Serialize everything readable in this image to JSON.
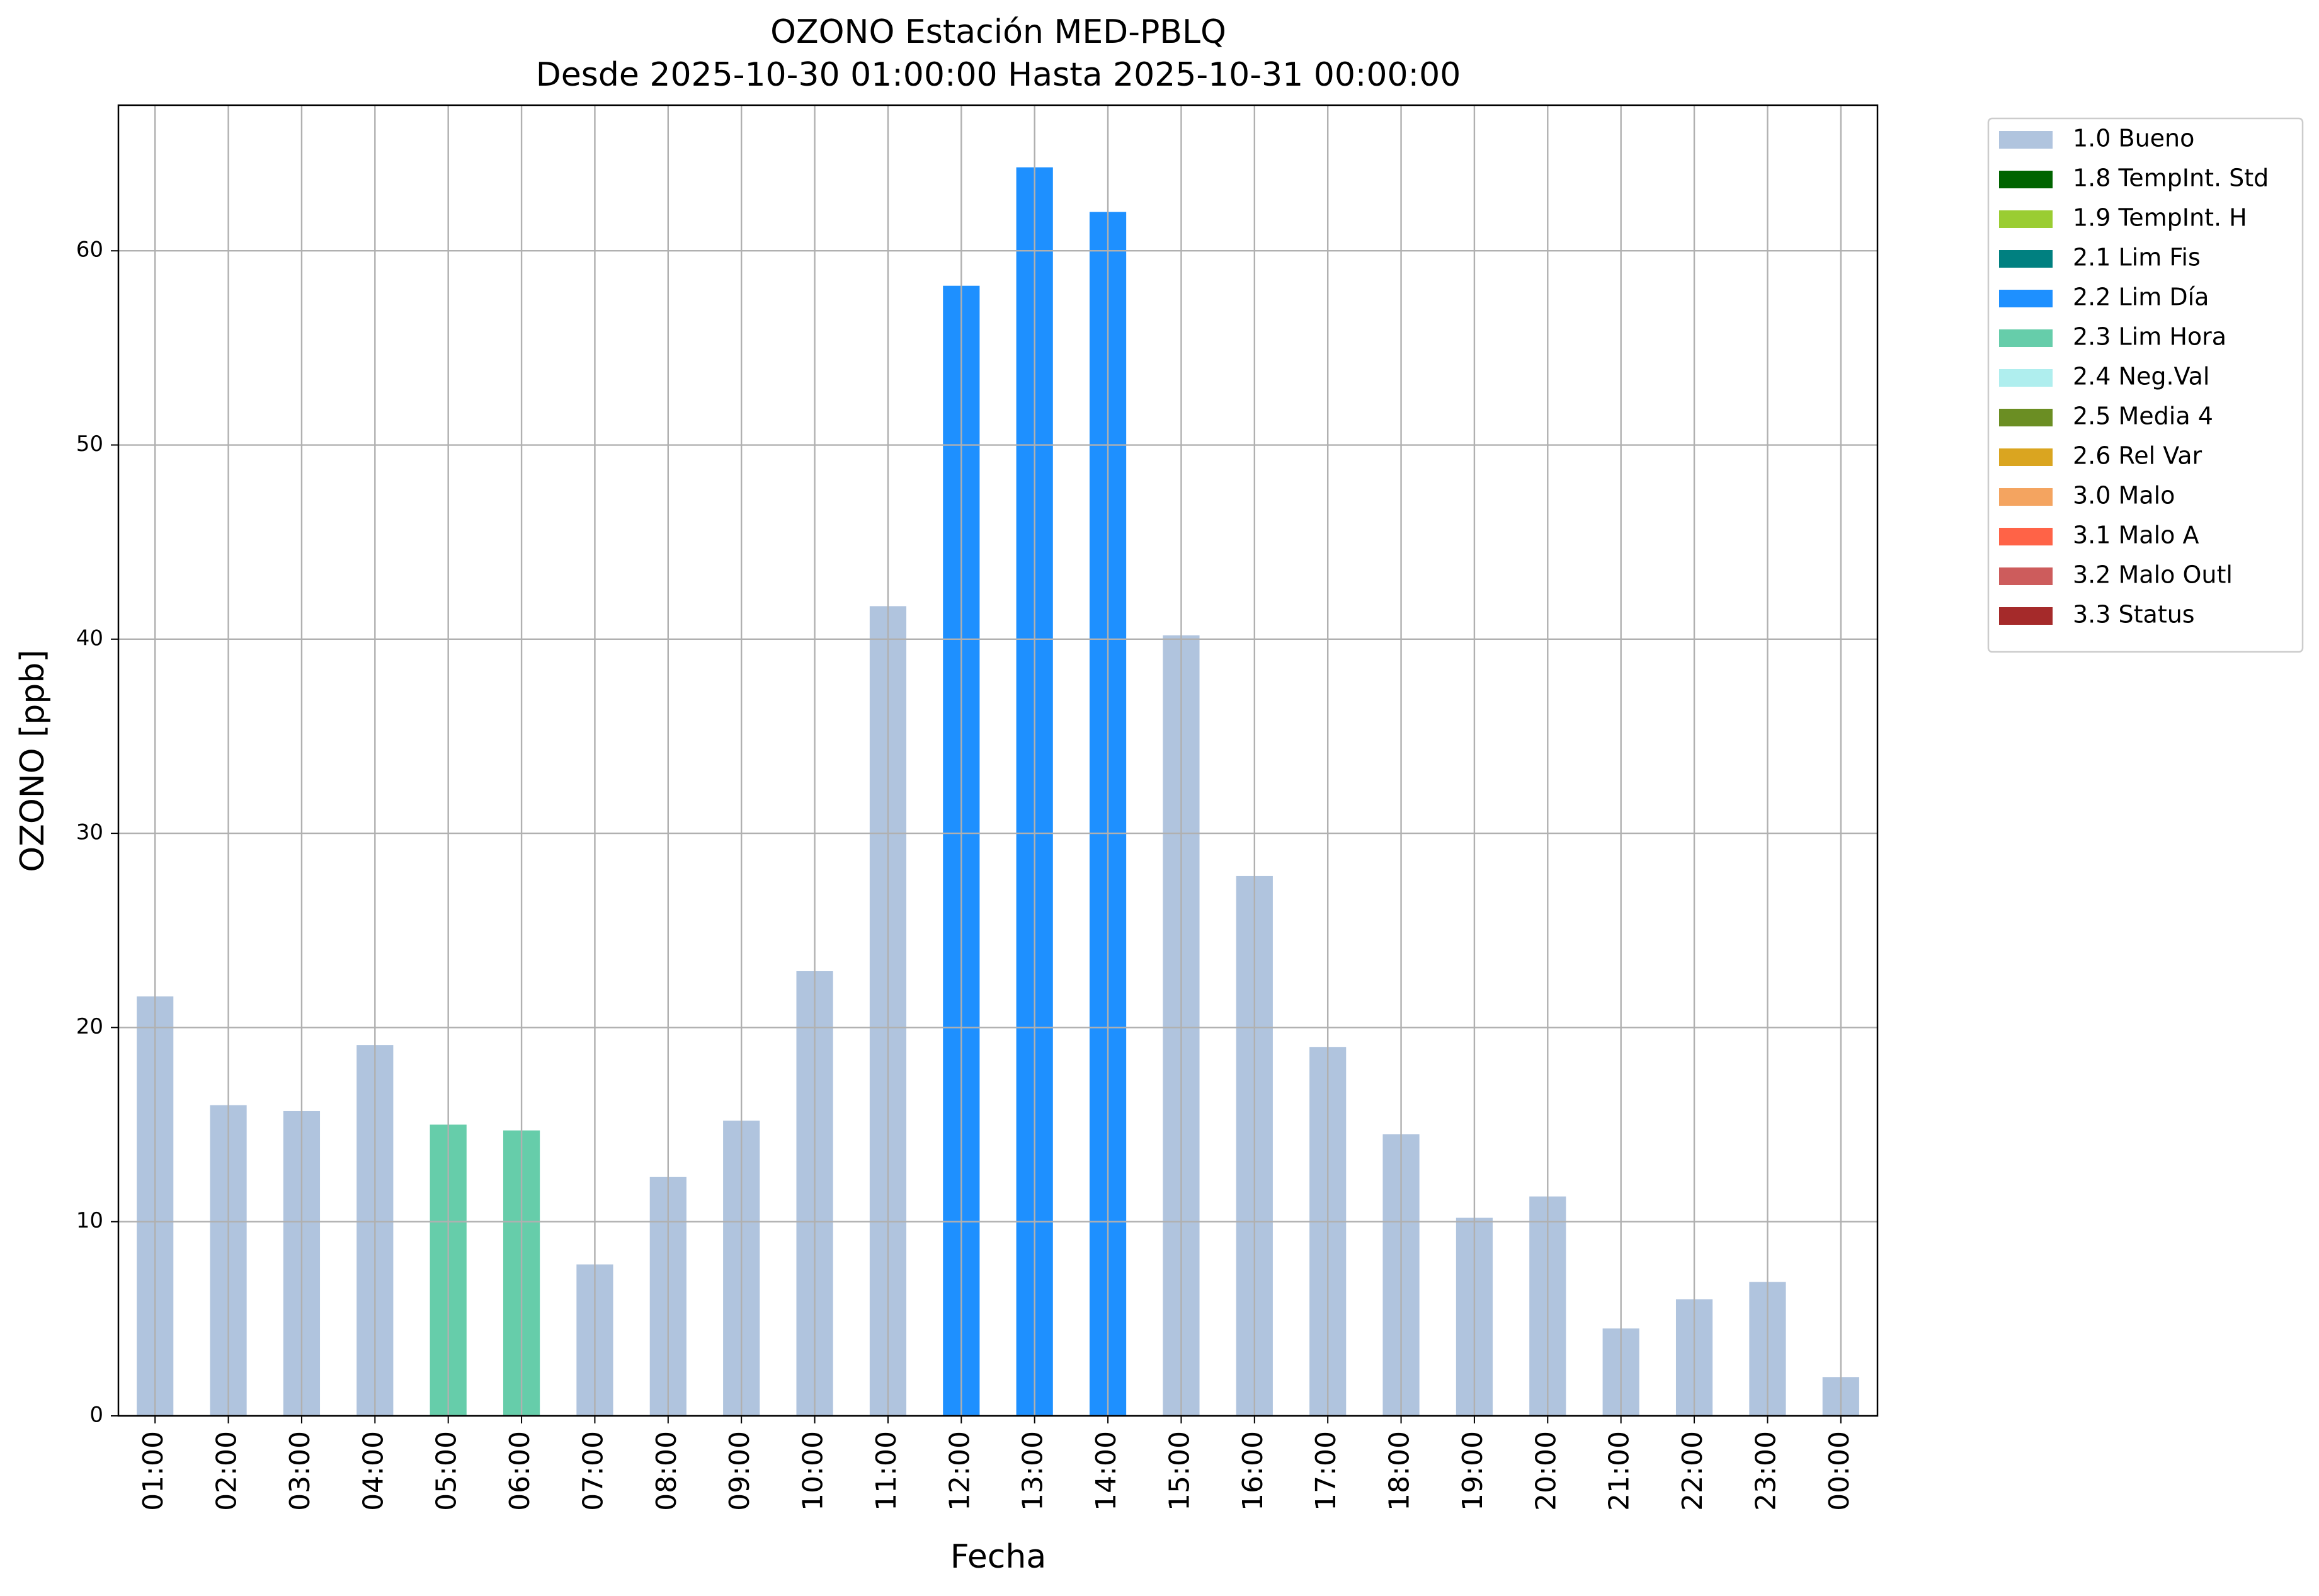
{
  "chart_data": {
    "type": "bar",
    "title": "OZONO Estación MED-PBLQ",
    "subtitle": "Desde 2025-10-30 01:00:00 Hasta 2025-10-31 00:00:00",
    "x_label": "Fecha",
    "y_label": "OZONO [ppb]",
    "categories": [
      "01:00",
      "02:00",
      "03:00",
      "04:00",
      "05:00",
      "06:00",
      "07:00",
      "08:00",
      "09:00",
      "10:00",
      "11:00",
      "12:00",
      "13:00",
      "14:00",
      "15:00",
      "16:00",
      "17:00",
      "18:00",
      "19:00",
      "20:00",
      "21:00",
      "22:00",
      "23:00",
      "00:00"
    ],
    "series": [
      {
        "name": "1.0 Bueno",
        "color": "#b0c4de",
        "values": [
          21.6,
          16.0,
          15.7,
          19.1,
          null,
          null,
          7.8,
          12.3,
          15.2,
          22.9,
          41.7,
          null,
          null,
          null,
          40.2,
          27.8,
          19.0,
          14.5,
          10.2,
          11.3,
          4.5,
          6.0,
          6.9,
          2.0
        ]
      },
      {
        "name": "1.8 TempInt. Std",
        "color": "#006400",
        "values": [
          null,
          null,
          null,
          null,
          null,
          null,
          null,
          null,
          null,
          null,
          null,
          null,
          null,
          null,
          null,
          null,
          null,
          null,
          null,
          null,
          null,
          null,
          null,
          null
        ]
      },
      {
        "name": "1.9 TempInt. H",
        "color": "#9acd32",
        "values": [
          null,
          null,
          null,
          null,
          null,
          null,
          null,
          null,
          null,
          null,
          null,
          null,
          null,
          null,
          null,
          null,
          null,
          null,
          null,
          null,
          null,
          null,
          null,
          null
        ]
      },
      {
        "name": "2.1 Lim Fis",
        "color": "#008080",
        "values": [
          null,
          null,
          null,
          null,
          null,
          null,
          null,
          null,
          null,
          null,
          null,
          null,
          null,
          null,
          null,
          null,
          null,
          null,
          null,
          null,
          null,
          null,
          null,
          null
        ]
      },
      {
        "name": "2.2 Lim Día",
        "color": "#1e90ff",
        "values": [
          null,
          null,
          null,
          null,
          null,
          null,
          null,
          null,
          null,
          null,
          null,
          58.2,
          64.3,
          62.0,
          null,
          null,
          null,
          null,
          null,
          null,
          null,
          null,
          null,
          null
        ]
      },
      {
        "name": "2.3 Lim Hora",
        "color": "#66cdaa",
        "values": [
          null,
          null,
          null,
          null,
          15.0,
          14.7,
          null,
          null,
          null,
          null,
          null,
          null,
          null,
          null,
          null,
          null,
          null,
          null,
          null,
          null,
          null,
          null,
          null,
          null
        ]
      },
      {
        "name": "2.4 Neg.Val",
        "color": "#afeeee",
        "values": [
          null,
          null,
          null,
          null,
          null,
          null,
          null,
          null,
          null,
          null,
          null,
          null,
          null,
          null,
          null,
          null,
          null,
          null,
          null,
          null,
          null,
          null,
          null,
          null
        ]
      },
      {
        "name": "2.5 Media 4",
        "color": "#6b8e23",
        "values": [
          null,
          null,
          null,
          null,
          null,
          null,
          null,
          null,
          null,
          null,
          null,
          null,
          null,
          null,
          null,
          null,
          null,
          null,
          null,
          null,
          null,
          null,
          null,
          null
        ]
      },
      {
        "name": "2.6 Rel Var",
        "color": "#daa520",
        "values": [
          null,
          null,
          null,
          null,
          null,
          null,
          null,
          null,
          null,
          null,
          null,
          null,
          null,
          null,
          null,
          null,
          null,
          null,
          null,
          null,
          null,
          null,
          null,
          null
        ]
      },
      {
        "name": "3.0 Malo",
        "color": "#f4a460",
        "values": [
          null,
          null,
          null,
          null,
          null,
          null,
          null,
          null,
          null,
          null,
          null,
          null,
          null,
          null,
          null,
          null,
          null,
          null,
          null,
          null,
          null,
          null,
          null,
          null
        ]
      },
      {
        "name": "3.1 Malo A",
        "color": "#ff6347",
        "values": [
          null,
          null,
          null,
          null,
          null,
          null,
          null,
          null,
          null,
          null,
          null,
          null,
          null,
          null,
          null,
          null,
          null,
          null,
          null,
          null,
          null,
          null,
          null,
          null
        ]
      },
      {
        "name": "3.2 Malo Outl",
        "color": "#cd5c5c",
        "values": [
          null,
          null,
          null,
          null,
          null,
          null,
          null,
          null,
          null,
          null,
          null,
          null,
          null,
          null,
          null,
          null,
          null,
          null,
          null,
          null,
          null,
          null,
          null,
          null
        ]
      },
      {
        "name": "3.3 Status",
        "color": "#a52a2a",
        "values": [
          null,
          null,
          null,
          null,
          null,
          null,
          null,
          null,
          null,
          null,
          null,
          null,
          null,
          null,
          null,
          null,
          null,
          null,
          null,
          null,
          null,
          null,
          null,
          null
        ]
      }
    ],
    "ylim": [
      0,
      67.5
    ],
    "yticks": [
      0,
      10,
      20,
      30,
      40,
      50,
      60
    ],
    "grid": true,
    "legend": "outside-upper-right"
  }
}
